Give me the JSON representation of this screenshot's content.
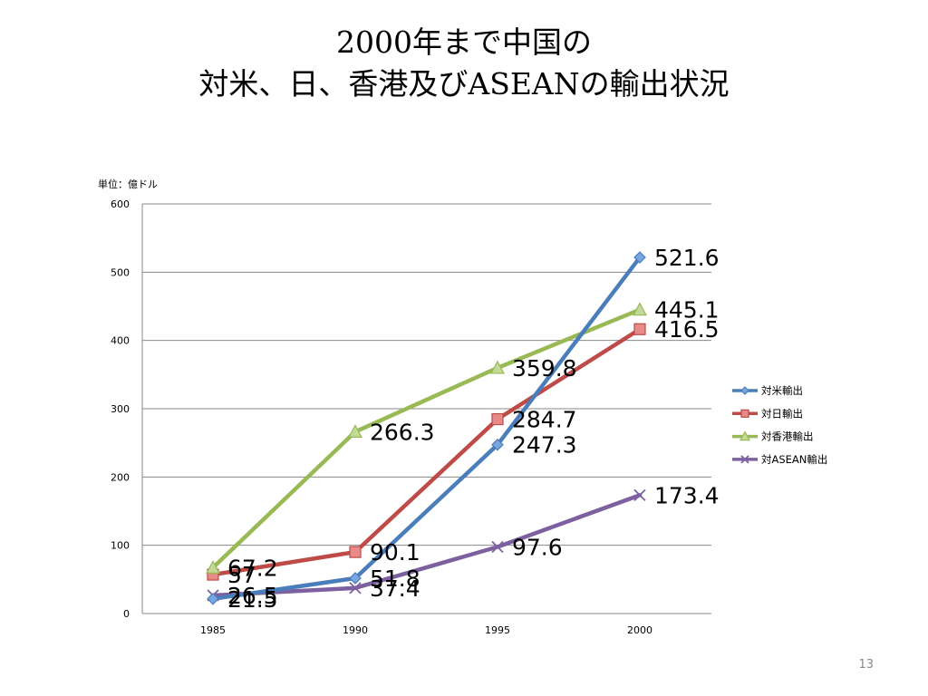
{
  "slide": {
    "title_line1": "2000年まで中国の",
    "title_line2": "対米、日、香港及びASEANの輸出状況",
    "page_number": "13"
  },
  "chart_data": {
    "type": "line",
    "title": "",
    "ylabel": "単位：億ドル",
    "xlabel": "",
    "x": [
      "1985",
      "1990",
      "1995",
      "2000"
    ],
    "ylim": [
      0,
      600
    ],
    "yticks": [
      0,
      100,
      200,
      300,
      400,
      500,
      600
    ],
    "grid": true,
    "legend_position": "right",
    "series": [
      {
        "name": "対米輸出",
        "values": [
          21.5,
          51.8,
          247.3,
          521.6
        ],
        "labels": [
          "21.5",
          "51.8",
          "247.3",
          "521.6"
        ],
        "color": "#4a7ebb",
        "marker": "diamond"
      },
      {
        "name": "対日輸出",
        "values": [
          57,
          90.1,
          284.7,
          416.5
        ],
        "labels": [
          "57",
          "90.1",
          "284.7",
          "416.5"
        ],
        "color": "#be4b48",
        "marker": "square"
      },
      {
        "name": "対香港輸出",
        "values": [
          67.2,
          266.3,
          359.8,
          445.1
        ],
        "labels": [
          "67.2",
          "266.3",
          "359.8",
          "445.1"
        ],
        "color": "#98b954",
        "marker": "triangle"
      },
      {
        "name": "対ASEAN輸出",
        "values": [
          26.5,
          37.4,
          97.6,
          173.4
        ],
        "labels": [
          "26.5",
          "37.4",
          "97.6",
          "173.4"
        ],
        "color": "#7d60a0",
        "marker": "x"
      }
    ]
  }
}
